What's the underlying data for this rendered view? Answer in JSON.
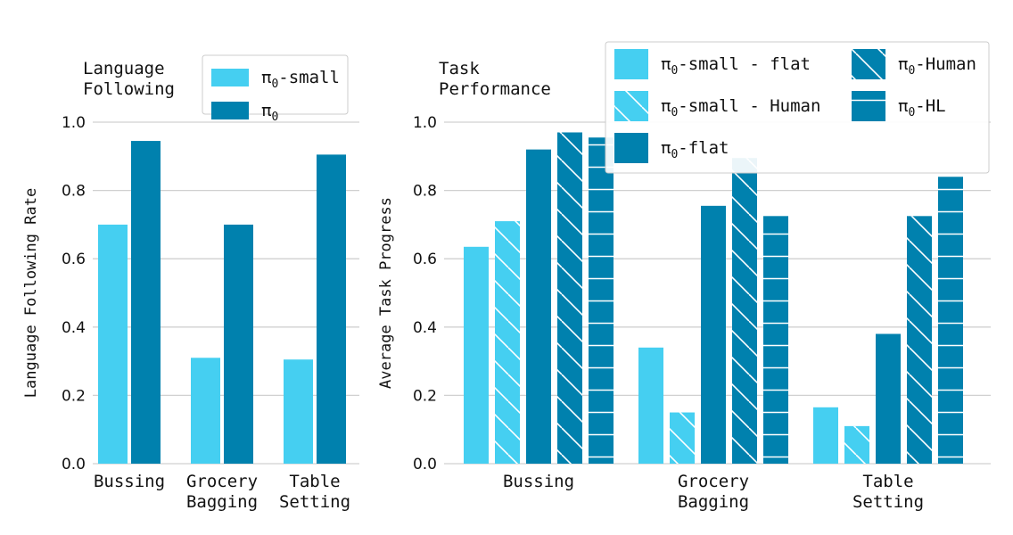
{
  "colors": {
    "light": "#45CFF1",
    "dark": "#0081AE",
    "grid": "#D0D0D0",
    "hatch": "#FFFFFF"
  },
  "chart_data": [
    {
      "type": "bar",
      "title": "Language\nFollowing",
      "ylabel": "Language Following Rate",
      "categories": [
        "Bussing",
        "Grocery\nBagging",
        "Table\nSetting"
      ],
      "ylim": [
        0,
        1.0
      ],
      "yticks": [
        "0.0",
        "0.2",
        "0.4",
        "0.6",
        "0.8",
        "1.0"
      ],
      "legend_position": "top-right",
      "grid": true,
      "series": [
        {
          "name": "π0-small",
          "values": [
            0.7,
            0.31,
            0.305
          ],
          "color": "light",
          "hatch": "none"
        },
        {
          "name": "π0",
          "values": [
            0.945,
            0.7,
            0.905
          ],
          "color": "dark",
          "hatch": "none"
        }
      ]
    },
    {
      "type": "bar",
      "title": "Task\nPerformance",
      "ylabel": "Average Task Progress",
      "categories": [
        "Bussing",
        "Grocery\nBagging",
        "Table\nSetting"
      ],
      "ylim": [
        0,
        1.0
      ],
      "yticks": [
        "0.0",
        "0.2",
        "0.4",
        "0.6",
        "0.8",
        "1.0"
      ],
      "legend_position": "top-right",
      "grid": true,
      "series": [
        {
          "name": "π0-small - flat",
          "values": [
            0.635,
            0.34,
            0.165
          ],
          "color": "light",
          "hatch": "none"
        },
        {
          "name": "π0-small - Human",
          "values": [
            0.71,
            0.15,
            0.11
          ],
          "color": "light",
          "hatch": "diag"
        },
        {
          "name": "π0-flat",
          "values": [
            0.92,
            0.755,
            0.38
          ],
          "color": "dark",
          "hatch": "none"
        },
        {
          "name": "π0-Human",
          "values": [
            0.97,
            0.895,
            0.725
          ],
          "color": "dark",
          "hatch": "diag"
        },
        {
          "name": "π0-HL",
          "values": [
            0.955,
            0.725,
            0.84
          ],
          "color": "dark",
          "hatch": "horiz"
        }
      ]
    }
  ]
}
